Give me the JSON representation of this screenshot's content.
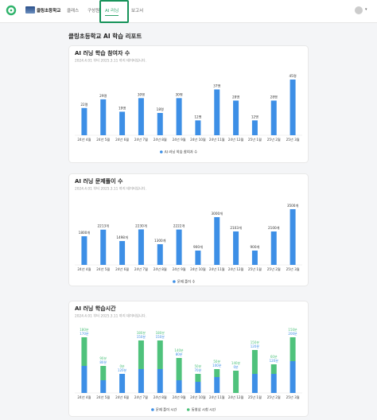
{
  "nav": {
    "school": "클링초등학교",
    "items": [
      "클래스",
      "구성원",
      "AI 러닝",
      "보고서"
    ]
  },
  "page": {
    "title": "클링초등학교 AI 학습 리포트"
  },
  "chart_data": [
    {
      "type": "bar",
      "title": "AI 러닝 학습 참여자 수",
      "subtitle": "2024.4.01 부터 2025.3.11 까지 데이터입니다.",
      "categories": [
        "24년 4월",
        "24년 5월",
        "24년 6월",
        "24년 7월",
        "24년 8월",
        "24년 9월",
        "24년 10월",
        "24년 11월",
        "24년 12월",
        "25년 1월",
        "25년 2월",
        "25년 3월"
      ],
      "series": [
        {
          "name": "AI 러닝 학습 참여자 수",
          "color": "#3d8fe6",
          "values": [
            22,
            29,
            19,
            30,
            18,
            30,
            12,
            37,
            28,
            12,
            28,
            45
          ],
          "value_labels": [
            "22명",
            "29명",
            "19명",
            "30명",
            "18명",
            "30명",
            "12명",
            "37명",
            "28명",
            "12명",
            "28명",
            "45명"
          ]
        }
      ]
    },
    {
      "type": "bar",
      "title": "AI 러닝 문제풀이 수",
      "subtitle": "2024.4.01 부터 2025.3.11 까지 데이터입니다.",
      "categories": [
        "24년 4월",
        "24년 5월",
        "24년 6월",
        "24년 7월",
        "24년 8월",
        "24년 9월",
        "24년 10월",
        "24년 11월",
        "24년 12월",
        "25년 1월",
        "25년 2월",
        "25년 3월"
      ],
      "series": [
        {
          "name": "문제 풀이 수",
          "color": "#3d8fe6",
          "values": [
            1800,
            2213,
            1498,
            2230,
            1300,
            2222,
            900,
            3000,
            2103,
            900,
            2100,
            3500
          ],
          "value_labels": [
            "1800개",
            "2213개",
            "1498개",
            "2230개",
            "1300개",
            "2222개",
            "900개",
            "3000개",
            "2103개",
            "900개",
            "2100개",
            "3500개"
          ]
        }
      ]
    },
    {
      "type": "stacked_bar",
      "title": "AI 러닝 학습시간",
      "subtitle": "2024.4.01 부터 2025.3.11 까지 데이터입니다.",
      "categories": [
        "24년 4월",
        "24년 5월",
        "24년 6월",
        "24년 7월",
        "24년 8월",
        "24년 9월",
        "24년 10월",
        "24년 11월",
        "24년 12월",
        "25년 1월",
        "25년 2월",
        "25년 3월"
      ],
      "series": [
        {
          "name": "문제 풀이 시간",
          "color": "#3d8fe6",
          "values": [
            170,
            80,
            120,
            150,
            150,
            80,
            70,
            100,
            0,
            120,
            120,
            200
          ],
          "value_labels": [
            "170분",
            "80분",
            "120분",
            "150분",
            "150분",
            "80분",
            "70분",
            "100분",
            "0분",
            "120분",
            "120분",
            "200분"
          ]
        },
        {
          "name": "동영상 시청 시간",
          "color": "#4fc27c",
          "values": [
            180,
            90,
            0,
            180,
            180,
            140,
            50,
            50,
            140,
            150,
            60,
            150
          ],
          "value_labels": [
            "180분",
            "90분",
            "0분",
            "180분",
            "180분",
            "140분",
            "50분",
            "50분",
            "140분",
            "150분",
            "60분",
            "150분"
          ]
        }
      ]
    }
  ]
}
